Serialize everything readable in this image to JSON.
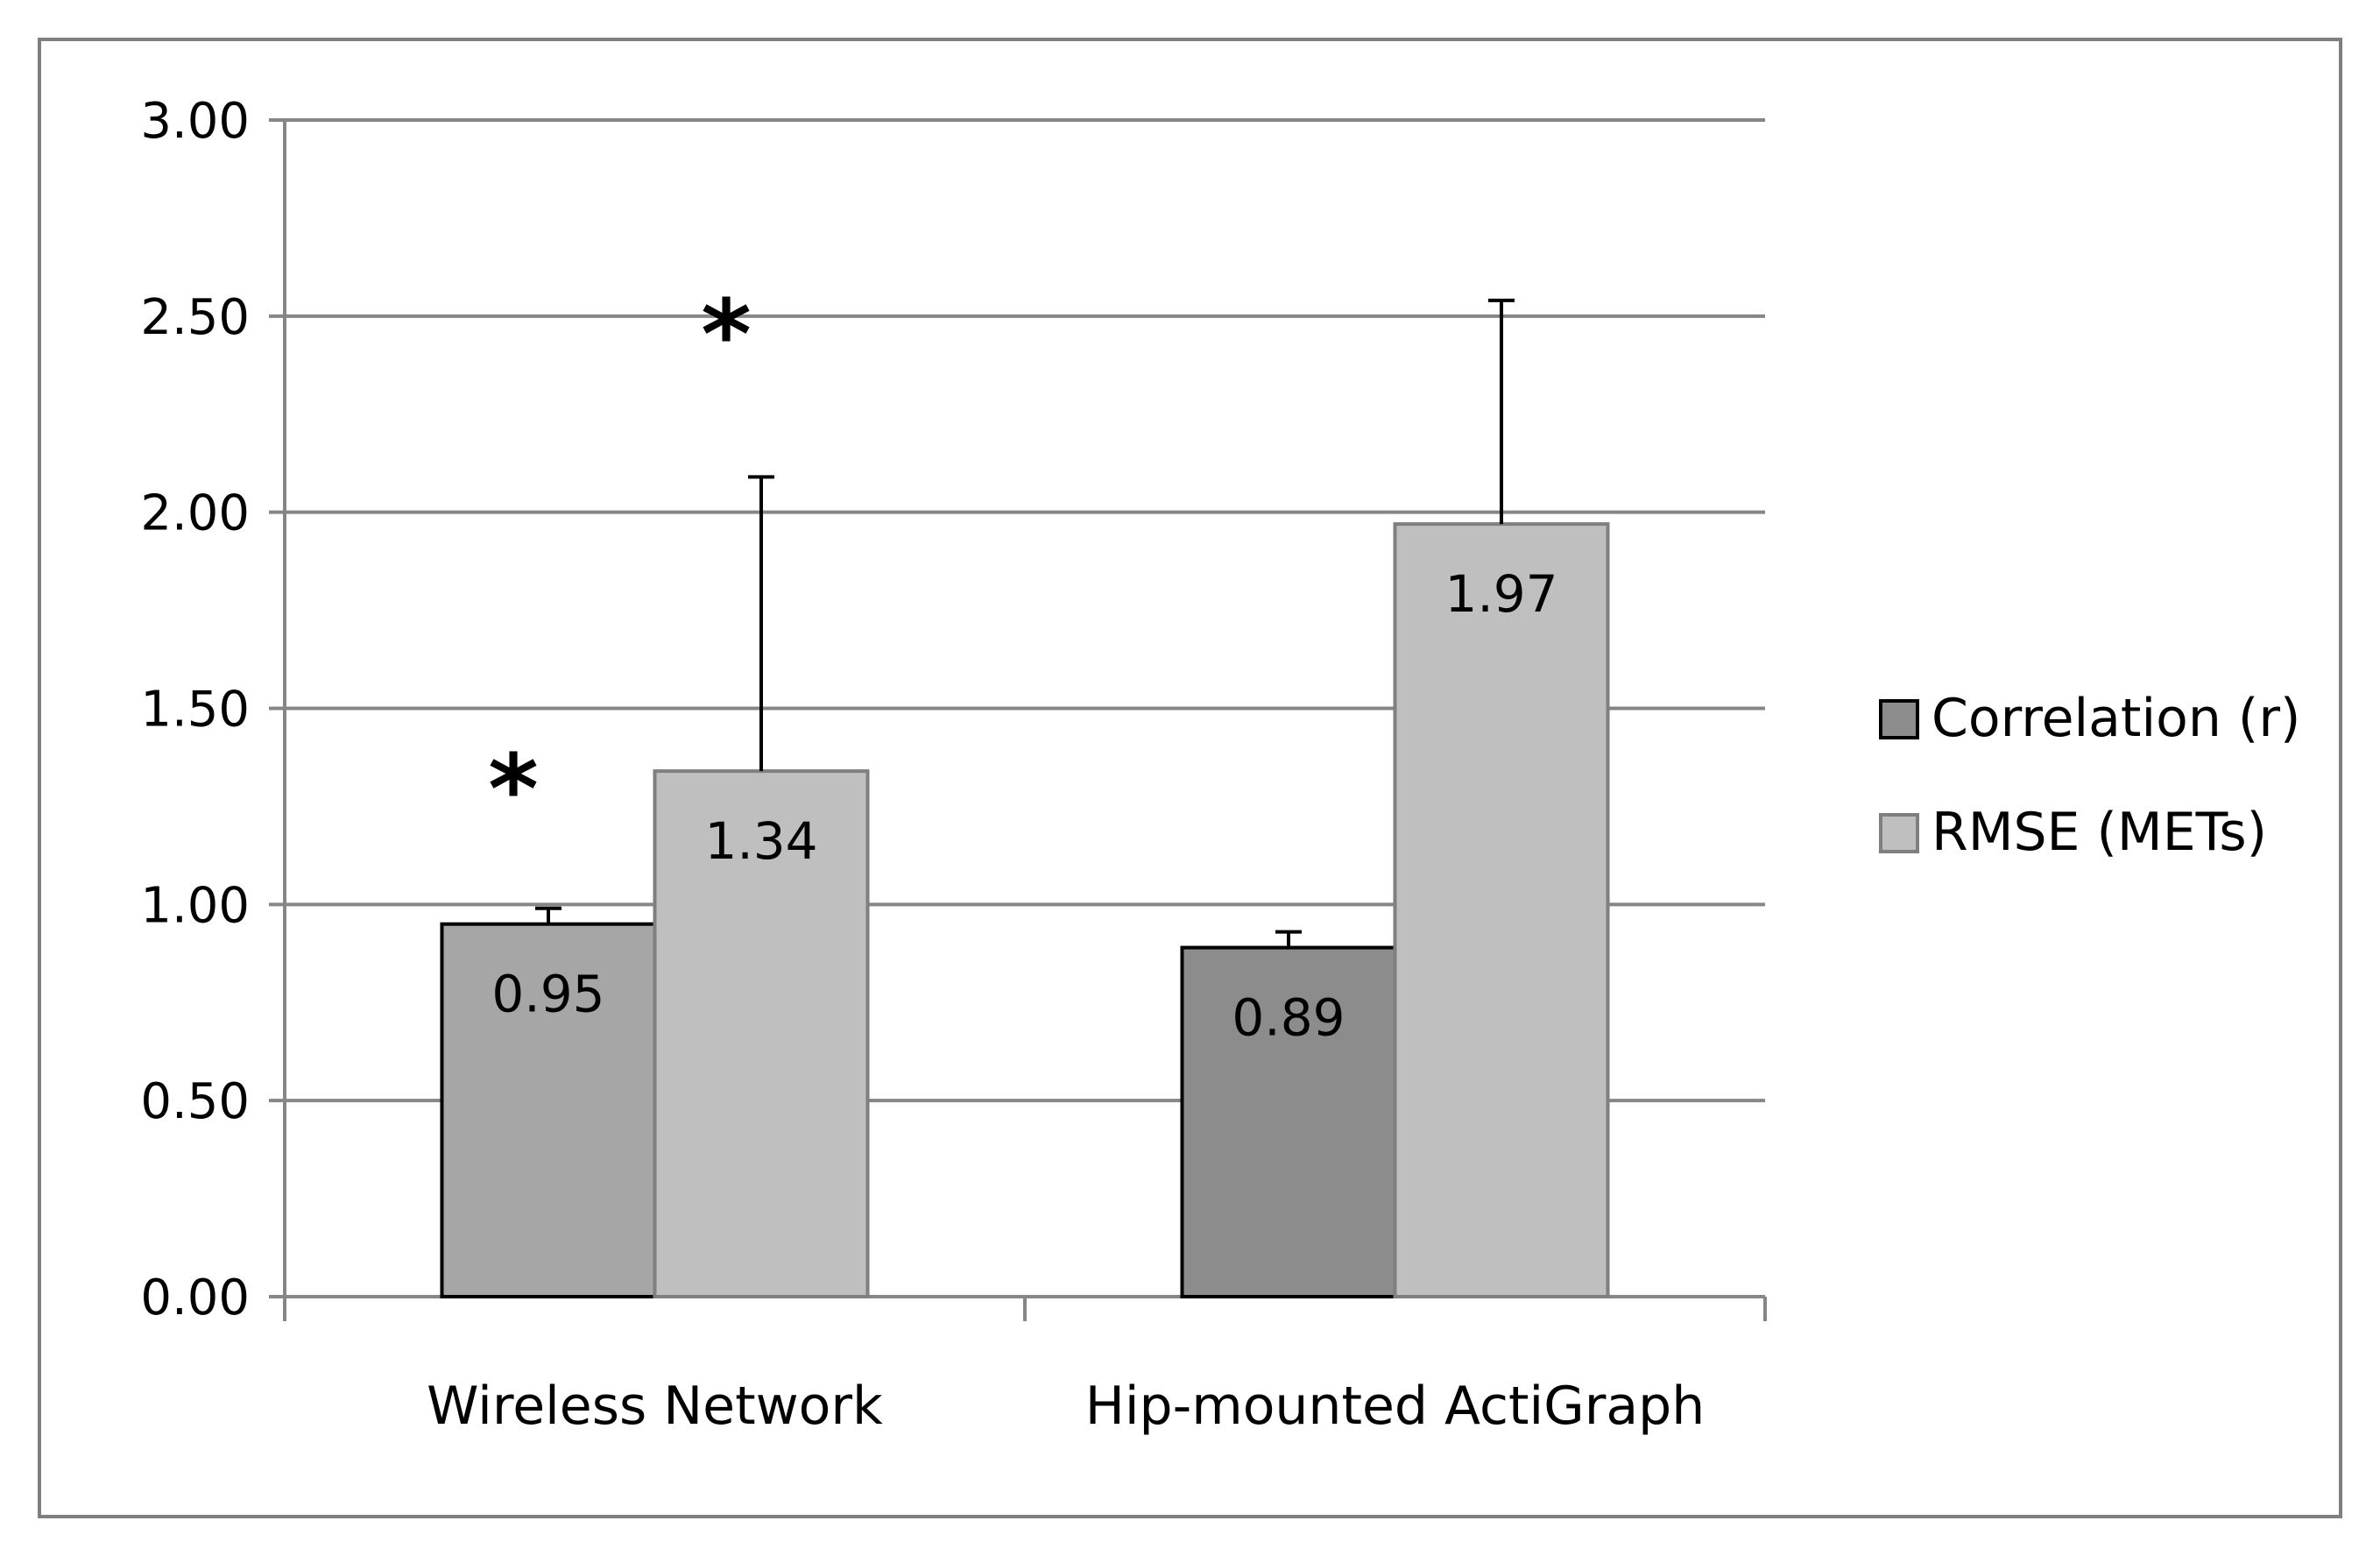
{
  "chart_data": {
    "type": "bar",
    "title": "",
    "xlabel": "",
    "ylabel": "",
    "ylim": [
      0,
      3
    ],
    "yticks": [
      "0.00",
      "0.50",
      "1.00",
      "1.50",
      "2.00",
      "2.50",
      "3.00"
    ],
    "grid": true,
    "legend_position": "right",
    "categories": [
      "Wireless Network",
      "Hip-mounted ActiGraph"
    ],
    "series": [
      {
        "name": "Correlation (r)",
        "values": [
          0.95,
          0.89
        ],
        "error_upper": [
          0.99,
          0.93
        ],
        "labels": [
          "0.95",
          "0.89"
        ],
        "colors": [
          "#a6a6a6",
          "#8c8c8c"
        ],
        "legend_color": "#8c8c8c",
        "border_color": "#000000"
      },
      {
        "name": "RMSE (METs)",
        "values": [
          1.34,
          1.97
        ],
        "error_upper": [
          2.09,
          2.54
        ],
        "labels": [
          "1.34",
          "1.97"
        ],
        "colors": [
          "#bfbfbf",
          "#bfbfbf"
        ],
        "legend_color": "#bfbfbf",
        "border_color": "#7f7f7f"
      }
    ],
    "annotations": [
      {
        "text": "*",
        "category": 0,
        "series": 0,
        "y": 1.32
      },
      {
        "text": "*",
        "category": 0,
        "series": 1,
        "y": 2.48
      }
    ]
  }
}
